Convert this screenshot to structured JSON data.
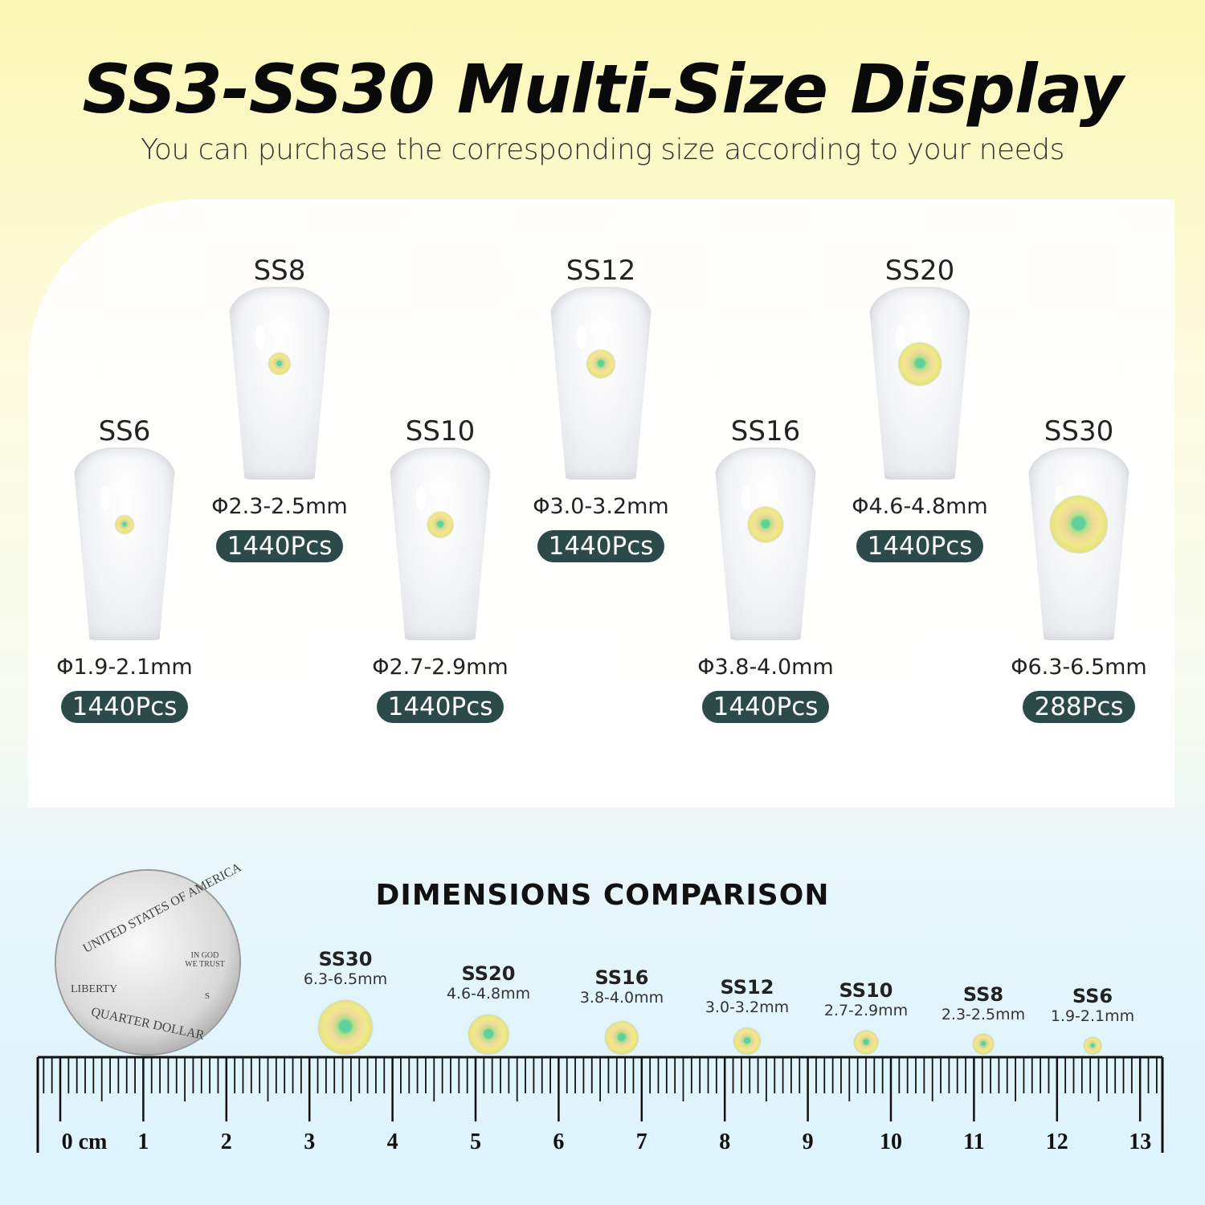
{
  "title": "SS3-SS30 Multi-Size Display",
  "subtitle": "You can purchase the corresponding size according to your needs",
  "sizes": [
    {
      "label": "SS6",
      "diameter": "Φ1.9-2.1mm",
      "count": "1440Pcs",
      "gem_mm": 2.0
    },
    {
      "label": "SS8",
      "diameter": "Φ2.3-2.5mm",
      "count": "1440Pcs",
      "gem_mm": 2.4
    },
    {
      "label": "SS10",
      "diameter": "Φ2.7-2.9mm",
      "count": "1440Pcs",
      "gem_mm": 2.8
    },
    {
      "label": "SS12",
      "diameter": "Φ3.0-3.2mm",
      "count": "1440Pcs",
      "gem_mm": 3.1
    },
    {
      "label": "SS16",
      "diameter": "Φ3.8-4.0mm",
      "count": "1440Pcs",
      "gem_mm": 3.9
    },
    {
      "label": "SS20",
      "diameter": "Φ4.6-4.8mm",
      "count": "1440Pcs",
      "gem_mm": 4.7
    },
    {
      "label": "SS30",
      "diameter": "Φ6.3-6.5mm",
      "count": "288Pcs",
      "gem_mm": 6.4
    }
  ],
  "comparison": {
    "title": "DIMENSIONS COMPARISON",
    "items": [
      {
        "label": "SS30",
        "size": "6.3-6.5mm"
      },
      {
        "label": "SS20",
        "size": "4.6-4.8mm"
      },
      {
        "label": "SS16",
        "size": "3.8-4.0mm"
      },
      {
        "label": "SS12",
        "size": "3.0-3.2mm"
      },
      {
        "label": "SS10",
        "size": "2.7-2.9mm"
      },
      {
        "label": "SS8",
        "size": "2.3-2.5mm"
      },
      {
        "label": "SS6",
        "size": "1.9-2.1mm"
      }
    ],
    "coin_text": {
      "top": "UNITED STATES OF AMERICA",
      "motto": "IN GOD WE TRUST",
      "liberty": "LIBERTY",
      "bottom": "QUARTER DOLLAR",
      "mint": "S"
    },
    "ruler": {
      "unit_label": "0 cm",
      "labels": [
        "1",
        "2",
        "3",
        "4",
        "5",
        "6",
        "7",
        "8",
        "9",
        "10",
        "11",
        "12",
        "13"
      ]
    }
  },
  "colors": {
    "badge": "#2c4a4a",
    "top_bg": "#fcf7b4",
    "bottom_bg": "#dcf3fc"
  }
}
